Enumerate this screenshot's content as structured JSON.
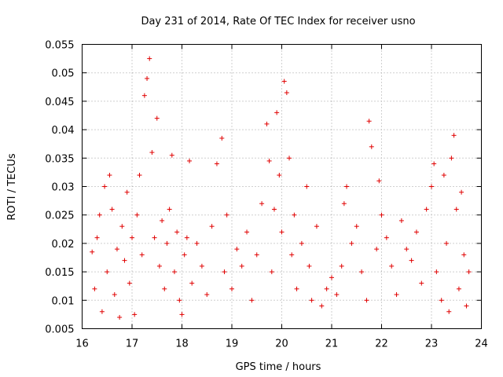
{
  "chart_data": {
    "type": "scatter",
    "title": "Day 231 of 2014, Rate Of TEC Index for receiver usno",
    "xlabel": "GPS time / hours",
    "ylabel": "ROTI / TECUs",
    "xlim": [
      16,
      24
    ],
    "ylim": [
      0.005,
      0.055
    ],
    "x_ticks": [
      "16",
      "17",
      "18",
      "19",
      "20",
      "21",
      "22",
      "23",
      "24"
    ],
    "y_ticks": [
      "0.005",
      "0.01",
      "0.015",
      "0.02",
      "0.025",
      "0.03",
      "0.035",
      "0.04",
      "0.045",
      "0.05",
      "0.055"
    ],
    "marker": "+",
    "color": "#e00000",
    "grid": true,
    "series": [
      {
        "name": "ROTI",
        "points": [
          [
            16.2,
            0.0185
          ],
          [
            16.25,
            0.012
          ],
          [
            16.3,
            0.021
          ],
          [
            16.35,
            0.025
          ],
          [
            16.4,
            0.008
          ],
          [
            16.45,
            0.03
          ],
          [
            16.5,
            0.015
          ],
          [
            16.55,
            0.032
          ],
          [
            16.6,
            0.026
          ],
          [
            16.65,
            0.011
          ],
          [
            16.7,
            0.019
          ],
          [
            16.75,
            0.007
          ],
          [
            16.8,
            0.023
          ],
          [
            16.85,
            0.017
          ],
          [
            16.9,
            0.029
          ],
          [
            16.95,
            0.013
          ],
          [
            17.0,
            0.021
          ],
          [
            17.05,
            0.0075
          ],
          [
            17.1,
            0.025
          ],
          [
            17.15,
            0.032
          ],
          [
            17.2,
            0.018
          ],
          [
            17.25,
            0.046
          ],
          [
            17.3,
            0.049
          ],
          [
            17.35,
            0.0525
          ],
          [
            17.4,
            0.036
          ],
          [
            17.45,
            0.021
          ],
          [
            17.5,
            0.042
          ],
          [
            17.55,
            0.016
          ],
          [
            17.6,
            0.024
          ],
          [
            17.65,
            0.012
          ],
          [
            17.7,
            0.02
          ],
          [
            17.75,
            0.026
          ],
          [
            17.8,
            0.0355
          ],
          [
            17.85,
            0.015
          ],
          [
            17.9,
            0.022
          ],
          [
            17.95,
            0.01
          ],
          [
            18.0,
            0.0075
          ],
          [
            18.05,
            0.018
          ],
          [
            18.1,
            0.021
          ],
          [
            18.15,
            0.0345
          ],
          [
            18.2,
            0.013
          ],
          [
            18.3,
            0.02
          ],
          [
            18.4,
            0.016
          ],
          [
            18.5,
            0.011
          ],
          [
            18.6,
            0.023
          ],
          [
            18.7,
            0.034
          ],
          [
            18.8,
            0.0385
          ],
          [
            18.85,
            0.015
          ],
          [
            18.9,
            0.025
          ],
          [
            19.0,
            0.012
          ],
          [
            19.1,
            0.019
          ],
          [
            19.2,
            0.016
          ],
          [
            19.3,
            0.022
          ],
          [
            19.4,
            0.01
          ],
          [
            19.5,
            0.018
          ],
          [
            19.6,
            0.027
          ],
          [
            19.7,
            0.041
          ],
          [
            19.75,
            0.0345
          ],
          [
            19.8,
            0.015
          ],
          [
            19.85,
            0.026
          ],
          [
            19.9,
            0.043
          ],
          [
            19.95,
            0.032
          ],
          [
            20.0,
            0.022
          ],
          [
            20.05,
            0.0485
          ],
          [
            20.1,
            0.0465
          ],
          [
            20.15,
            0.035
          ],
          [
            20.2,
            0.018
          ],
          [
            20.25,
            0.025
          ],
          [
            20.3,
            0.012
          ],
          [
            20.4,
            0.02
          ],
          [
            20.5,
            0.03
          ],
          [
            20.55,
            0.016
          ],
          [
            20.6,
            0.01
          ],
          [
            20.7,
            0.023
          ],
          [
            20.8,
            0.009
          ],
          [
            20.9,
            0.012
          ],
          [
            21.0,
            0.014
          ],
          [
            21.1,
            0.011
          ],
          [
            21.2,
            0.016
          ],
          [
            21.25,
            0.027
          ],
          [
            21.3,
            0.03
          ],
          [
            21.4,
            0.02
          ],
          [
            21.5,
            0.023
          ],
          [
            21.6,
            0.015
          ],
          [
            21.7,
            0.01
          ],
          [
            21.75,
            0.0415
          ],
          [
            21.8,
            0.037
          ],
          [
            21.9,
            0.019
          ],
          [
            21.95,
            0.031
          ],
          [
            22.0,
            0.025
          ],
          [
            22.1,
            0.021
          ],
          [
            22.2,
            0.016
          ],
          [
            22.3,
            0.011
          ],
          [
            22.4,
            0.024
          ],
          [
            22.5,
            0.019
          ],
          [
            22.6,
            0.017
          ],
          [
            22.7,
            0.022
          ],
          [
            22.8,
            0.013
          ],
          [
            22.9,
            0.026
          ],
          [
            23.0,
            0.03
          ],
          [
            23.05,
            0.034
          ],
          [
            23.1,
            0.015
          ],
          [
            23.2,
            0.01
          ],
          [
            23.25,
            0.032
          ],
          [
            23.3,
            0.02
          ],
          [
            23.35,
            0.008
          ],
          [
            23.4,
            0.035
          ],
          [
            23.45,
            0.039
          ],
          [
            23.5,
            0.026
          ],
          [
            23.55,
            0.012
          ],
          [
            23.6,
            0.029
          ],
          [
            23.65,
            0.018
          ],
          [
            23.7,
            0.009
          ],
          [
            23.75,
            0.015
          ]
        ]
      }
    ]
  }
}
